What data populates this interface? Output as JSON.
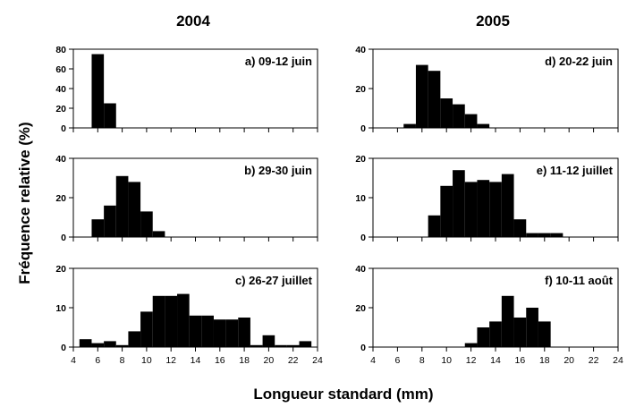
{
  "figure": {
    "column_titles": [
      "2004",
      "2005"
    ],
    "xlabel": "Longueur standard (mm)",
    "ylabel": "Fréquence relative (%)"
  },
  "chart_data": [
    {
      "type": "bar",
      "label": "a) 09-12 juin",
      "year": "2004",
      "x": [
        6,
        7
      ],
      "values": [
        75,
        25
      ],
      "xlim": [
        4,
        24
      ],
      "ylim": [
        0,
        80
      ],
      "yticks": [
        0,
        20,
        40,
        60,
        80
      ],
      "xticks": [
        4,
        6,
        8,
        10,
        12,
        14,
        16,
        18,
        20,
        22,
        24
      ],
      "show_xtick_labels": false
    },
    {
      "type": "bar",
      "label": "d) 20-22 juin",
      "year": "2005",
      "x": [
        7,
        8,
        9,
        10,
        11,
        12,
        13
      ],
      "values": [
        2,
        32,
        29,
        15,
        12,
        7,
        2
      ],
      "xlim": [
        4,
        24
      ],
      "ylim": [
        0,
        40
      ],
      "yticks": [
        0,
        20,
        40
      ],
      "xticks": [
        4,
        6,
        8,
        10,
        12,
        14,
        16,
        18,
        20,
        22,
        24
      ],
      "show_xtick_labels": false
    },
    {
      "type": "bar",
      "label": "b) 29-30 juin",
      "year": "2004",
      "x": [
        6,
        7,
        8,
        9,
        10,
        11
      ],
      "values": [
        9,
        16,
        31,
        28,
        13,
        3
      ],
      "xlim": [
        4,
        24
      ],
      "ylim": [
        0,
        40
      ],
      "yticks": [
        0,
        20,
        40
      ],
      "xticks": [
        4,
        6,
        8,
        10,
        12,
        14,
        16,
        18,
        20,
        22,
        24
      ],
      "show_xtick_labels": false
    },
    {
      "type": "bar",
      "label": "e) 11-12 juillet",
      "year": "2005",
      "x": [
        9,
        10,
        11,
        12,
        13,
        14,
        15,
        16,
        17,
        18,
        19
      ],
      "values": [
        5.5,
        13,
        17,
        14,
        14.5,
        14,
        16,
        4.5,
        1,
        1,
        1
      ],
      "xlim": [
        4,
        24
      ],
      "ylim": [
        0,
        20
      ],
      "yticks": [
        0,
        10,
        20
      ],
      "xticks": [
        4,
        6,
        8,
        10,
        12,
        14,
        16,
        18,
        20,
        22,
        24
      ],
      "show_xtick_labels": false
    },
    {
      "type": "bar",
      "label": "c) 26-27 juillet",
      "year": "2004",
      "x": [
        5,
        6,
        7,
        8,
        9,
        10,
        11,
        12,
        13,
        14,
        15,
        16,
        17,
        18,
        19,
        20,
        21,
        22,
        23
      ],
      "values": [
        2,
        1,
        1.5,
        0.5,
        4,
        9,
        13,
        13,
        13.5,
        8,
        8,
        7,
        7,
        7.5,
        0.5,
        3,
        0.5,
        0.5,
        1.5
      ],
      "xlim": [
        4,
        24
      ],
      "ylim": [
        0,
        20
      ],
      "yticks": [
        0,
        10,
        20
      ],
      "xticks": [
        4,
        6,
        8,
        10,
        12,
        14,
        16,
        18,
        20,
        22,
        24
      ],
      "show_xtick_labels": true
    },
    {
      "type": "bar",
      "label": "f) 10-11 août",
      "year": "2005",
      "x": [
        12,
        13,
        14,
        15,
        16,
        17,
        18
      ],
      "values": [
        2,
        10,
        13,
        26,
        15,
        20,
        13
      ],
      "xlim": [
        4,
        24
      ],
      "ylim": [
        0,
        40
      ],
      "yticks": [
        0,
        20,
        40
      ],
      "xticks": [
        4,
        6,
        8,
        10,
        12,
        14,
        16,
        18,
        20,
        22,
        24
      ],
      "show_xtick_labels": true
    }
  ]
}
